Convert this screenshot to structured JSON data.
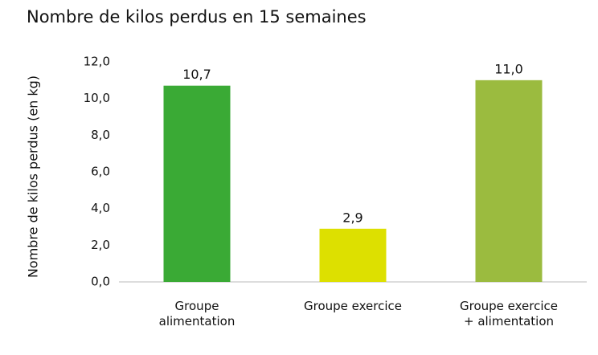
{
  "chart_data": {
    "type": "bar",
    "title": "Nombre de kilos perdus en 15 semaines",
    "y_label": "Nombre de kilos perdus (en kg)",
    "categories": [
      "Groupe\nalimentation",
      "Groupe exercice",
      "Groupe exercice\n+ alimentation"
    ],
    "values": [
      10.7,
      2.9,
      11.0
    ],
    "value_labels": [
      "10,7",
      "2,9",
      "11,0"
    ],
    "colors": [
      "#3aaa35",
      "#dde000",
      "#9bbb3f"
    ],
    "ylim": [
      0,
      12
    ],
    "yticks": [
      {
        "value": 0,
        "label": "0,0"
      },
      {
        "value": 2,
        "label": "2,0"
      },
      {
        "value": 4,
        "label": "4,0"
      },
      {
        "value": 6,
        "label": "6,0"
      },
      {
        "value": 8,
        "label": "8,0"
      },
      {
        "value": 10,
        "label": "10,0"
      },
      {
        "value": 12,
        "label": "12,0"
      }
    ],
    "grid": false
  }
}
